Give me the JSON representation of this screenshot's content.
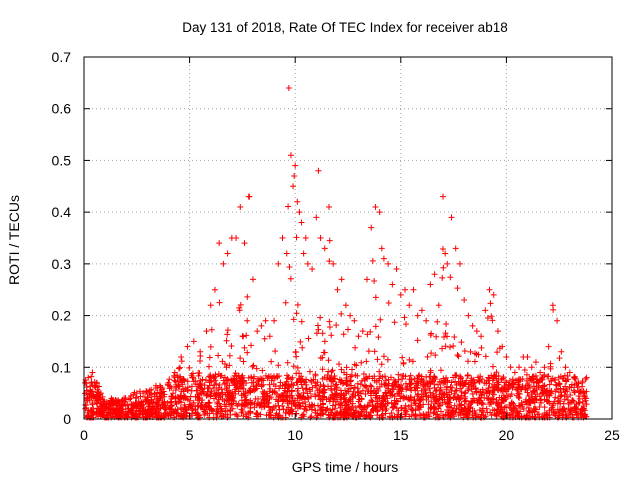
{
  "chart_data": {
    "type": "scatter",
    "title": "Day 131 of 2018, Rate Of TEC Index for receiver ab18",
    "xlabel": "GPS time / hours",
    "ylabel": "ROTI / TECUs",
    "xlim": [
      0,
      25
    ],
    "ylim": [
      0,
      0.7
    ],
    "xticks": [
      "0",
      "5",
      "10",
      "15",
      "20",
      "25"
    ],
    "yticks": [
      "0",
      "0.1",
      "0.2",
      "0.3",
      "0.4",
      "0.5",
      "0.6",
      "0.7"
    ],
    "grid": true,
    "marker": "+",
    "color": "#ff0000",
    "series": [
      {
        "x": [
          0.05,
          0.2,
          0.4,
          0.6,
          0.8,
          1.0,
          1.3,
          1.6,
          1.9,
          2.2,
          2.5,
          2.8,
          3.1,
          3.4,
          3.7,
          4.0,
          4.3,
          4.6,
          4.9,
          5.2,
          5.5,
          5.8,
          6.0,
          6.2,
          6.4,
          6.6,
          6.8,
          7.0,
          7.2,
          7.4,
          7.6,
          7.8,
          7.83,
          8.0,
          8.2,
          8.4,
          8.6,
          8.8,
          9.0,
          9.2,
          9.4,
          9.6,
          9.7,
          9.8,
          9.9,
          9.95,
          10.0,
          10.1,
          10.2,
          10.3,
          10.4,
          10.5,
          10.6,
          10.8,
          11.0,
          11.1,
          11.2,
          11.4,
          11.6,
          11.8,
          12.0,
          12.2,
          12.4,
          12.6,
          12.8,
          13.0,
          13.2,
          13.4,
          13.6,
          13.8,
          14.0,
          14.1,
          14.2,
          14.4,
          14.6,
          14.8,
          15.0,
          15.2,
          15.4,
          15.6,
          15.8,
          16.0,
          16.2,
          16.4,
          16.6,
          16.8,
          17.0,
          17.1,
          17.2,
          17.4,
          17.6,
          17.8,
          18.0,
          18.2,
          18.4,
          18.6,
          18.8,
          19.0,
          19.2,
          19.4,
          19.6,
          19.8,
          20.0,
          20.2,
          20.4,
          20.6,
          20.8,
          21.0,
          21.2,
          21.4,
          21.6,
          21.8,
          22.0,
          22.2,
          22.4,
          22.6,
          22.8,
          23.0,
          23.2,
          23.4,
          23.6,
          23.8
        ],
        "y": [
          0.07,
          0.08,
          0.09,
          0.07,
          0.05,
          0.03,
          0.04,
          0.03,
          0.04,
          0.04,
          0.05,
          0.05,
          0.05,
          0.06,
          0.06,
          0.07,
          0.09,
          0.12,
          0.14,
          0.15,
          0.13,
          0.17,
          0.22,
          0.25,
          0.34,
          0.3,
          0.32,
          0.35,
          0.35,
          0.41,
          0.34,
          0.43,
          0.43,
          0.27,
          0.17,
          0.18,
          0.19,
          0.16,
          0.19,
          0.3,
          0.35,
          0.32,
          0.64,
          0.51,
          0.45,
          0.47,
          0.49,
          0.42,
          0.4,
          0.38,
          0.32,
          0.35,
          0.3,
          0.29,
          0.39,
          0.48,
          0.35,
          0.33,
          0.41,
          0.3,
          0.25,
          0.27,
          0.22,
          0.2,
          0.19,
          0.16,
          0.17,
          0.27,
          0.37,
          0.41,
          0.4,
          0.33,
          0.31,
          0.3,
          0.26,
          0.29,
          0.24,
          0.25,
          0.22,
          0.25,
          0.2,
          0.21,
          0.19,
          0.26,
          0.28,
          0.22,
          0.43,
          0.32,
          0.3,
          0.39,
          0.33,
          0.3,
          0.23,
          0.2,
          0.18,
          0.17,
          0.16,
          0.21,
          0.25,
          0.24,
          0.17,
          0.14,
          0.12,
          0.1,
          0.09,
          0.1,
          0.12,
          0.12,
          0.1,
          0.11,
          0.09,
          0.1,
          0.14,
          0.22,
          0.19,
          0.13,
          0.1,
          0.09,
          0.08,
          0.07,
          0.07,
          0.08
        ],
        "note_upper_envelope": true
      }
    ]
  }
}
